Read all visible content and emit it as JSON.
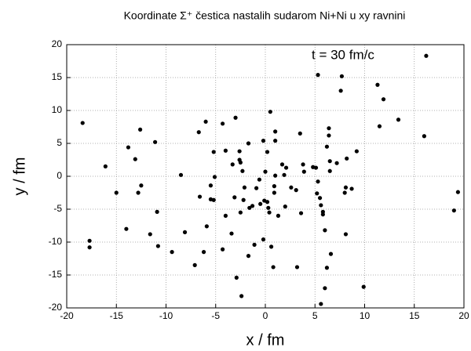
{
  "chart_data": {
    "type": "scatter",
    "title": "Koordinate Σ⁺ čestica nastalih sudarom Ni+Ni u xy ravnini",
    "annotation": "t = 30 fm/c",
    "x_label": "x / fm",
    "y_label": "y / fm",
    "color": "#000000",
    "grid": true,
    "xlim": [
      -20,
      20
    ],
    "ylim": [
      -20,
      20
    ],
    "xticks": [
      -20,
      -15,
      -10,
      -5,
      0,
      5,
      10,
      15,
      20
    ],
    "yticks": [
      -20,
      -15,
      -10,
      -5,
      0,
      5,
      10,
      15,
      20
    ],
    "x": [
      -18.4,
      -16.1,
      -17.7,
      -17.7,
      -15.0,
      -14.0,
      -13.8,
      -13.1,
      -12.8,
      -12.6,
      -12.5,
      -11.6,
      -11.1,
      -10.9,
      -10.8,
      -9.4,
      -8.5,
      -8.1,
      -7.1,
      -6.7,
      -6.6,
      -6.2,
      -6.0,
      -5.9,
      -5.5,
      -5.5,
      -5.2,
      -5.2,
      -5.1,
      -4.3,
      -4.3,
      -4.0,
      -4.0,
      -3.4,
      -3.3,
      -3.1,
      -3.0,
      -2.9,
      -2.6,
      -2.6,
      -2.5,
      -2.5,
      -2.4,
      -2.3,
      -2.2,
      -2.1,
      -1.7,
      -1.7,
      -1.6,
      -1.3,
      -1.1,
      -0.9,
      -0.6,
      -0.5,
      -0.2,
      -0.2,
      -0.1,
      0,
      0.2,
      0.2,
      0.3,
      0.4,
      0.5,
      0.6,
      0.8,
      0.9,
      0.9,
      1.0,
      1.0,
      1.0,
      1.3,
      1.7,
      1.9,
      2.0,
      2.1,
      2.6,
      3.1,
      3.2,
      3.5,
      3.6,
      3.8,
      3.9,
      4.8,
      5.1,
      5.2,
      5.3,
      5.3,
      5.5,
      5.6,
      5.6,
      5.8,
      5.8,
      6.0,
      6.0,
      6.2,
      6.2,
      6.4,
      6.4,
      6.5,
      6.5,
      6.6,
      7.2,
      7.6,
      7.7,
      8.0,
      8.1,
      8.1,
      8.2,
      8.7,
      9.2,
      9.9,
      11.3,
      11.5,
      11.9,
      13.4,
      16.0,
      16.2,
      19.0,
      19.4
    ],
    "values": [
      8.1,
      1.5,
      -9.8,
      -10.8,
      -2.5,
      -8.0,
      4.4,
      2.6,
      -2.5,
      7.1,
      -1.4,
      -8.8,
      5.2,
      -5.4,
      -10.6,
      -11.5,
      0.2,
      -8.5,
      -13.5,
      6.7,
      -3.1,
      -11.5,
      8.3,
      -7.6,
      -1.4,
      -3.5,
      3.7,
      -3.6,
      -0.1,
      8.0,
      -11.1,
      3.9,
      -6.0,
      -8.7,
      1.8,
      -3.2,
      8.9,
      -15.4,
      3.8,
      2.5,
      2.1,
      -5.5,
      -18.2,
      0.8,
      -3.6,
      -1.7,
      -12.1,
      5.0,
      -4.8,
      -4.5,
      -10.4,
      -1.8,
      -0.5,
      -4.2,
      5.4,
      -9.6,
      -3.7,
      0.7,
      3.7,
      -3.9,
      -4.8,
      -5.5,
      9.8,
      -10.7,
      -13.8,
      -2.5,
      -1.5,
      5.4,
      0.1,
      6.8,
      -6.0,
      1.8,
      0.2,
      -4.6,
      1.3,
      -1.7,
      -2.1,
      -13.8,
      6.5,
      -5.6,
      1.8,
      0.7,
      1.4,
      1.3,
      -2.6,
      15.4,
      -0.8,
      -3.3,
      -19.4,
      -4.4,
      -5.4,
      -5.8,
      -8.2,
      -17.0,
      4.5,
      -13.9,
      6.2,
      7.3,
      2.3,
      0.8,
      -11.8,
      2.0,
      13.0,
      15.2,
      -2.5,
      -1.7,
      -8.8,
      2.7,
      -1.9,
      3.8,
      -16.8,
      13.9,
      7.6,
      11.7,
      8.6,
      6.1,
      18.3,
      -5.2,
      -2.4
    ]
  }
}
